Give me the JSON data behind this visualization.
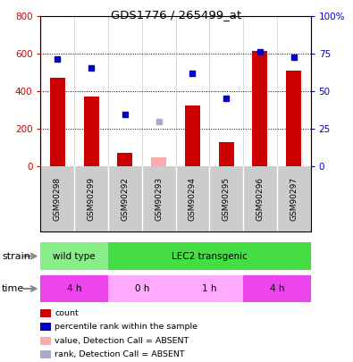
{
  "title": "GDS1776 / 265499_at",
  "samples": [
    "GSM90298",
    "GSM90299",
    "GSM90292",
    "GSM90293",
    "GSM90294",
    "GSM90295",
    "GSM90296",
    "GSM90297"
  ],
  "counts": [
    475,
    375,
    75,
    null,
    325,
    130,
    615,
    510
  ],
  "counts_absent": [
    null,
    null,
    null,
    50,
    null,
    null,
    null,
    null
  ],
  "ranks_pct": [
    71.5,
    65.5,
    34.5,
    null,
    62.0,
    45.5,
    76.5,
    72.5
  ],
  "ranks_absent_pct": [
    null,
    null,
    null,
    30.0,
    null,
    null,
    null,
    null
  ],
  "ylim_left": [
    0,
    800
  ],
  "ylim_right": [
    0,
    100
  ],
  "yticks_left": [
    0,
    200,
    400,
    600,
    800
  ],
  "yticks_right": [
    0,
    25,
    50,
    75,
    100
  ],
  "yticklabels_right": [
    "0",
    "25",
    "50",
    "75",
    "100%"
  ],
  "left_axis_color": "#cc0000",
  "right_axis_color": "#0000cc",
  "bar_color": "#cc0000",
  "bar_absent_color": "#ffaaaa",
  "dot_color": "#0000cc",
  "dot_absent_color": "#aaaacc",
  "strain_labels": [
    {
      "label": "wild type",
      "start": 0,
      "end": 2,
      "color": "#88ee88"
    },
    {
      "label": "LEC2 transgenic",
      "start": 2,
      "end": 8,
      "color": "#44dd44"
    }
  ],
  "time_labels": [
    {
      "label": "4 h",
      "start": 0,
      "end": 2,
      "color": "#ee44ee"
    },
    {
      "label": "0 h",
      "start": 2,
      "end": 4,
      "color": "#ffaaff"
    },
    {
      "label": "1 h",
      "start": 4,
      "end": 6,
      "color": "#ffaaff"
    },
    {
      "label": "4 h",
      "start": 6,
      "end": 8,
      "color": "#ee44ee"
    }
  ],
  "legend_items": [
    {
      "label": "count",
      "color": "#cc0000"
    },
    {
      "label": "percentile rank within the sample",
      "color": "#0000cc"
    },
    {
      "label": "value, Detection Call = ABSENT",
      "color": "#ffaaaa"
    },
    {
      "label": "rank, Detection Call = ABSENT",
      "color": "#aaaacc"
    }
  ],
  "panel_bg": "#cccccc",
  "col_sep_color": "#ffffff"
}
